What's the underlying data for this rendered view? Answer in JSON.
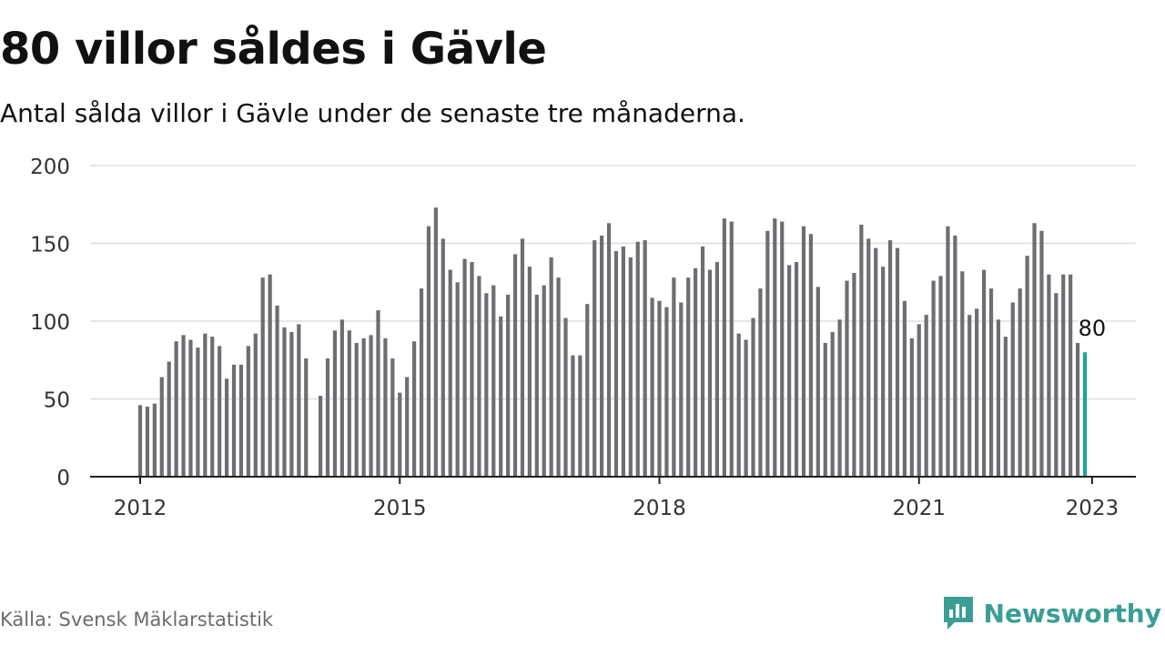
{
  "header": {
    "title": "80 villor såldes i Gävle",
    "subtitle": "Antal sålda villor i Gävle under de senaste tre månaderna."
  },
  "footer": {
    "source": "Källa: Svensk Mäklarstatistik",
    "brand": "Newsworthy",
    "brand_icon": "newsworthy-logo-icon",
    "brand_color": "#3a9e95"
  },
  "colors": {
    "bar": "#6d6d72",
    "highlight": "#1aa59b",
    "grid": "#dddddd",
    "axis": "#222222"
  },
  "chart_data": {
    "type": "bar",
    "title": "80 villor såldes i Gävle",
    "subtitle": "Antal sålda villor i Gävle under de senaste tre månaderna.",
    "xlabel": "",
    "ylabel": "",
    "ylim": [
      0,
      200
    ],
    "yticks": [
      0,
      50,
      100,
      150,
      200
    ],
    "xticks": [
      "2012",
      "2015",
      "2018",
      "2021",
      "2023"
    ],
    "grid": true,
    "legend": "none",
    "series": [
      {
        "start": "2012-01",
        "interval": "month",
        "values": [
          46,
          45,
          47,
          64,
          74,
          87,
          91,
          88,
          83,
          92,
          90,
          84,
          63,
          72,
          72,
          84,
          92,
          128,
          130,
          110,
          96,
          93,
          98,
          76,
          null,
          52,
          76,
          94,
          101,
          94,
          86,
          89,
          91,
          107,
          89,
          76,
          54,
          64,
          87,
          121,
          161,
          173,
          153,
          133,
          125,
          140,
          138,
          129,
          118,
          123,
          103,
          117,
          143,
          153,
          135,
          117,
          123,
          141,
          128,
          102,
          78,
          78,
          111,
          152,
          155,
          163,
          145,
          148,
          141,
          151,
          152,
          115,
          113,
          109,
          128,
          112,
          128,
          134,
          148,
          133,
          138,
          166,
          164,
          92,
          88,
          102,
          121,
          158,
          166,
          164,
          136,
          138,
          161,
          156,
          122,
          86,
          93,
          101,
          126,
          131,
          162,
          153,
          147,
          135,
          152,
          147,
          113,
          89,
          98,
          104,
          126,
          129,
          161,
          155,
          132,
          104,
          108,
          133,
          121,
          101,
          90,
          112,
          121,
          142,
          163,
          158,
          130,
          118,
          130,
          130,
          86,
          80
        ]
      }
    ],
    "annotation": {
      "label": "80",
      "value": 80,
      "at": "2023-01"
    }
  }
}
